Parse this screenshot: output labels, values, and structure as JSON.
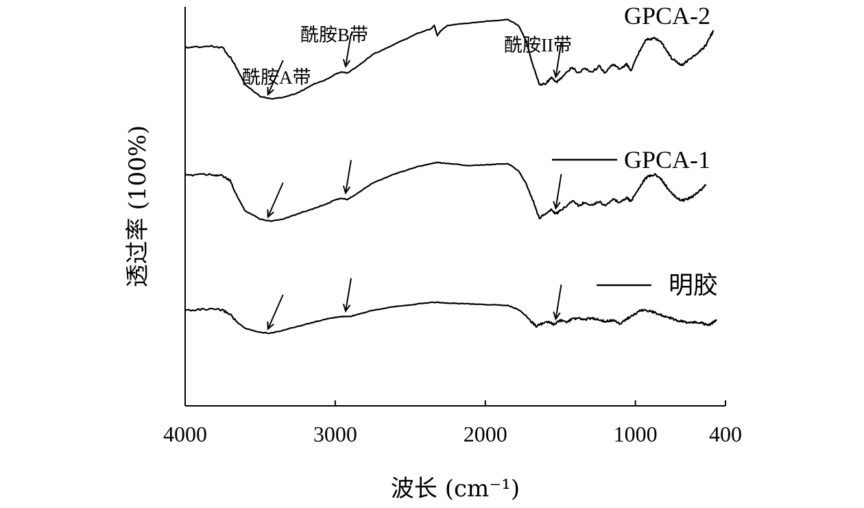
{
  "chart_data": {
    "type": "line",
    "title": "",
    "xlabel": "波长 (cm⁻¹)",
    "ylabel": "透过率 (100%)",
    "xlim": [
      4000,
      400
    ],
    "x_reversed": true,
    "x_ticks": [
      4000,
      3000,
      2000,
      1000,
      400
    ],
    "y_ticks_shown": false,
    "legend_placement": "right, beside each curve",
    "series": [
      {
        "name": "GPCA-2",
        "points": [
          [
            4000,
            0.74
          ],
          [
            3850,
            0.75
          ],
          [
            3750,
            0.74
          ],
          [
            3680,
            0.62
          ],
          [
            3600,
            0.42
          ],
          [
            3500,
            0.32
          ],
          [
            3430,
            0.3
          ],
          [
            3350,
            0.31
          ],
          [
            3250,
            0.35
          ],
          [
            3150,
            0.42
          ],
          [
            3050,
            0.47
          ],
          [
            3000,
            0.51
          ],
          [
            2960,
            0.53
          ],
          [
            2920,
            0.52
          ],
          [
            2850,
            0.58
          ],
          [
            2750,
            0.68
          ],
          [
            2600,
            0.77
          ],
          [
            2450,
            0.86
          ],
          [
            2360,
            0.9
          ],
          [
            2340,
            0.93
          ],
          [
            2320,
            0.84
          ],
          [
            2300,
            0.88
          ],
          [
            2250,
            0.93
          ],
          [
            2100,
            0.95
          ],
          [
            1950,
            0.97
          ],
          [
            1850,
            0.98
          ],
          [
            1780,
            0.93
          ],
          [
            1730,
            0.8
          ],
          [
            1680,
            0.58
          ],
          [
            1640,
            0.42
          ],
          [
            1600,
            0.43
          ],
          [
            1560,
            0.48
          ],
          [
            1530,
            0.44
          ],
          [
            1500,
            0.47
          ],
          [
            1460,
            0.52
          ],
          [
            1420,
            0.57
          ],
          [
            1380,
            0.52
          ],
          [
            1340,
            0.56
          ],
          [
            1290,
            0.53
          ],
          [
            1240,
            0.58
          ],
          [
            1200,
            0.52
          ],
          [
            1150,
            0.6
          ],
          [
            1100,
            0.55
          ],
          [
            1060,
            0.6
          ],
          [
            1030,
            0.54
          ],
          [
            990,
            0.66
          ],
          [
            960,
            0.74
          ],
          [
            930,
            0.81
          ],
          [
            900,
            0.81
          ],
          [
            870,
            0.82
          ],
          [
            830,
            0.79
          ],
          [
            800,
            0.73
          ],
          [
            760,
            0.65
          ],
          [
            720,
            0.61
          ],
          [
            690,
            0.59
          ],
          [
            670,
            0.61
          ],
          [
            630,
            0.65
          ],
          [
            590,
            0.68
          ],
          [
            560,
            0.72
          ],
          [
            530,
            0.76
          ],
          [
            500,
            0.84
          ],
          [
            480,
            0.88
          ]
        ],
        "labels": []
      },
      {
        "name": "GPCA-1",
        "points": [
          [
            4000,
            0.79
          ],
          [
            3900,
            0.81
          ],
          [
            3800,
            0.8
          ],
          [
            3750,
            0.79
          ],
          [
            3700,
            0.74
          ],
          [
            3650,
            0.58
          ],
          [
            3600,
            0.45
          ],
          [
            3500,
            0.37
          ],
          [
            3430,
            0.35
          ],
          [
            3350,
            0.37
          ],
          [
            3250,
            0.42
          ],
          [
            3150,
            0.47
          ],
          [
            3050,
            0.52
          ],
          [
            3000,
            0.56
          ],
          [
            2960,
            0.57
          ],
          [
            2920,
            0.56
          ],
          [
            2850,
            0.62
          ],
          [
            2750,
            0.72
          ],
          [
            2600,
            0.81
          ],
          [
            2450,
            0.88
          ],
          [
            2360,
            0.91
          ],
          [
            2320,
            0.92
          ],
          [
            2250,
            0.91
          ],
          [
            2100,
            0.89
          ],
          [
            1950,
            0.9
          ],
          [
            1850,
            0.91
          ],
          [
            1780,
            0.84
          ],
          [
            1730,
            0.72
          ],
          [
            1680,
            0.54
          ],
          [
            1640,
            0.38
          ],
          [
            1600,
            0.42
          ],
          [
            1560,
            0.46
          ],
          [
            1530,
            0.42
          ],
          [
            1500,
            0.45
          ],
          [
            1460,
            0.5
          ],
          [
            1420,
            0.55
          ],
          [
            1380,
            0.5
          ],
          [
            1340,
            0.53
          ],
          [
            1290,
            0.51
          ],
          [
            1240,
            0.54
          ],
          [
            1200,
            0.5
          ],
          [
            1150,
            0.56
          ],
          [
            1100,
            0.53
          ],
          [
            1060,
            0.58
          ],
          [
            1030,
            0.54
          ],
          [
            990,
            0.64
          ],
          [
            960,
            0.71
          ],
          [
            930,
            0.77
          ],
          [
            900,
            0.79
          ],
          [
            870,
            0.8
          ],
          [
            830,
            0.76
          ],
          [
            800,
            0.7
          ],
          [
            760,
            0.62
          ],
          [
            720,
            0.57
          ],
          [
            690,
            0.55
          ],
          [
            670,
            0.56
          ],
          [
            630,
            0.58
          ],
          [
            590,
            0.62
          ],
          [
            560,
            0.66
          ],
          [
            530,
            0.7
          ]
        ],
        "labels": []
      },
      {
        "name": "明胶",
        "points": [
          [
            4000,
            0.63
          ],
          [
            3900,
            0.64
          ],
          [
            3800,
            0.64
          ],
          [
            3750,
            0.63
          ],
          [
            3700,
            0.58
          ],
          [
            3650,
            0.47
          ],
          [
            3600,
            0.4
          ],
          [
            3500,
            0.35
          ],
          [
            3440,
            0.34
          ],
          [
            3380,
            0.36
          ],
          [
            3300,
            0.4
          ],
          [
            3200,
            0.45
          ],
          [
            3100,
            0.5
          ],
          [
            3000,
            0.54
          ],
          [
            2950,
            0.55
          ],
          [
            2900,
            0.55
          ],
          [
            2850,
            0.58
          ],
          [
            2750,
            0.63
          ],
          [
            2600,
            0.68
          ],
          [
            2450,
            0.71
          ],
          [
            2360,
            0.73
          ],
          [
            2320,
            0.73
          ],
          [
            2250,
            0.72
          ],
          [
            2100,
            0.71
          ],
          [
            1950,
            0.7
          ],
          [
            1850,
            0.69
          ],
          [
            1780,
            0.64
          ],
          [
            1730,
            0.56
          ],
          [
            1690,
            0.48
          ],
          [
            1660,
            0.43
          ],
          [
            1620,
            0.46
          ],
          [
            1580,
            0.48
          ],
          [
            1540,
            0.45
          ],
          [
            1500,
            0.5
          ],
          [
            1460,
            0.48
          ],
          [
            1420,
            0.52
          ],
          [
            1380,
            0.53
          ],
          [
            1340,
            0.51
          ],
          [
            1290,
            0.53
          ],
          [
            1240,
            0.51
          ],
          [
            1200,
            0.49
          ],
          [
            1150,
            0.5
          ],
          [
            1100,
            0.46
          ],
          [
            1060,
            0.52
          ],
          [
            1030,
            0.55
          ],
          [
            990,
            0.6
          ],
          [
            960,
            0.63
          ],
          [
            930,
            0.63
          ],
          [
            900,
            0.62
          ],
          [
            870,
            0.6
          ],
          [
            830,
            0.57
          ],
          [
            800,
            0.55
          ],
          [
            760,
            0.53
          ],
          [
            720,
            0.5
          ],
          [
            690,
            0.49
          ],
          [
            660,
            0.48
          ],
          [
            630,
            0.47
          ],
          [
            600,
            0.48
          ],
          [
            560,
            0.47
          ],
          [
            520,
            0.44
          ],
          [
            500,
            0.45
          ],
          [
            480,
            0.48
          ],
          [
            460,
            0.5
          ]
        ],
        "labels": []
      }
    ],
    "annotations": [
      {
        "text": "酰胺A带",
        "x": 3430
      },
      {
        "text": "酰胺B带",
        "x": 2940
      },
      {
        "text": "酰胺II带",
        "x": 1540
      }
    ],
    "legend": [
      "GPCA-2",
      "GPCA-1",
      "明胶"
    ]
  }
}
